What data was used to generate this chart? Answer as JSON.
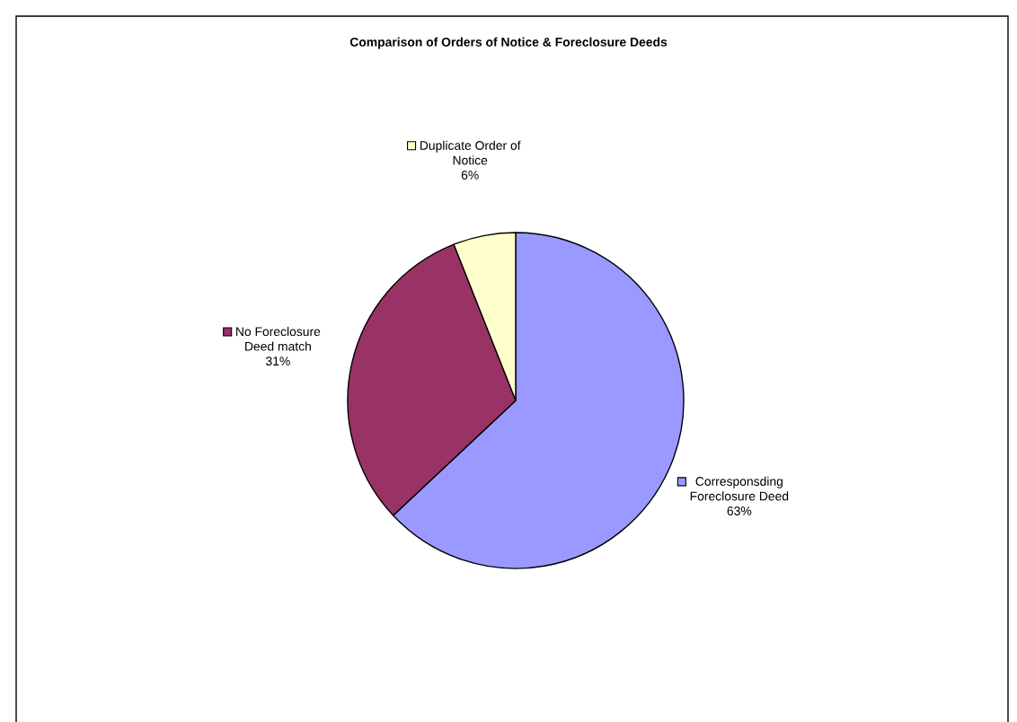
{
  "chart_data": {
    "type": "pie",
    "title": "Comparison of Orders of Notice & Foreclosure Deeds",
    "categories": [
      "Corresponsding\nForeclosure Deed",
      "No Foreclosure\nDeed match",
      "Duplicate Order of\nNotice"
    ],
    "values": [
      63,
      31,
      6
    ],
    "value_labels": [
      "63%",
      "31%",
      "6%"
    ],
    "colors": [
      "#9999ff",
      "#993366",
      "#ffffcc"
    ],
    "legend": "center"
  }
}
